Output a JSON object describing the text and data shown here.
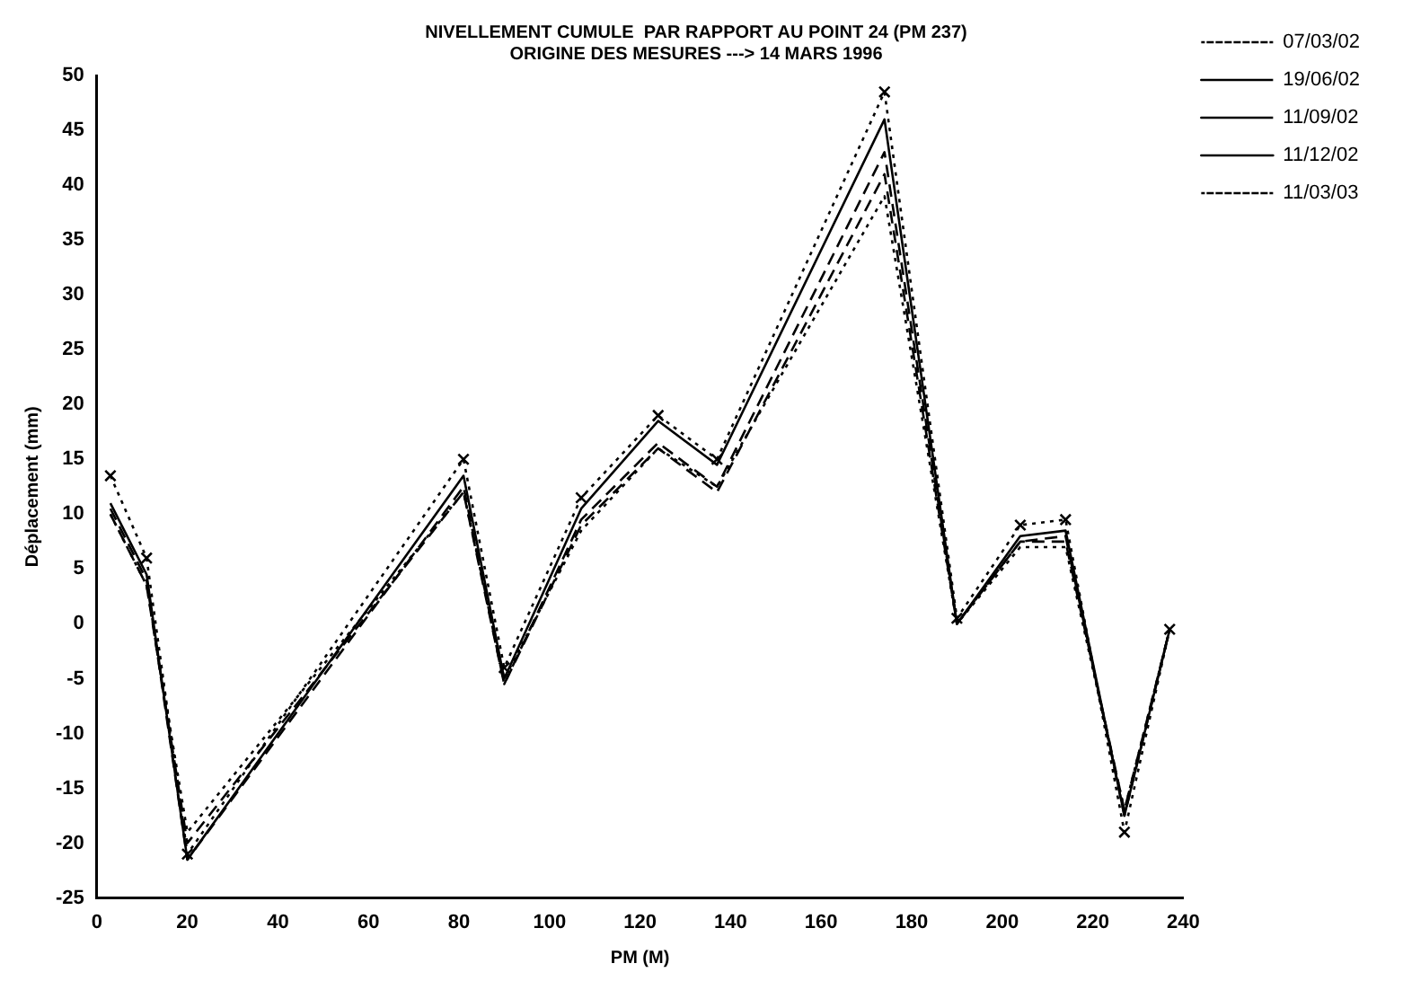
{
  "chart_data": {
    "type": "line",
    "title": "NIVELLEMENT CUMULE  PAR RAPPORT AU POINT 24 (PM 237)",
    "subtitle": "ORIGINE DES MESURES ---> 14 MARS 1996",
    "xlabel": "PM (M)",
    "ylabel": "Déplacement (mm)",
    "x": [
      3,
      11,
      20,
      81,
      90,
      107,
      124,
      137,
      174,
      190,
      204,
      214,
      227,
      237
    ],
    "series": [
      {
        "name": "07/03/02",
        "color": "#000000",
        "line_style": "dotted",
        "marker": "none",
        "values": [
          10,
          3.5,
          -19,
          12,
          -5,
          8.5,
          16,
          12.5,
          39,
          0,
          7,
          7,
          -17,
          -0.5
        ]
      },
      {
        "name": "19/06/02",
        "color": "#000000",
        "line_style": "dashed",
        "marker": "none",
        "values": [
          10,
          3.5,
          -20,
          12,
          -5.5,
          9,
          16,
          12,
          41,
          0,
          7.5,
          7.5,
          -17,
          -0.5
        ]
      },
      {
        "name": "11/09/02",
        "color": "#000000",
        "line_style": "dashed",
        "marker": "none",
        "values": [
          10.5,
          4,
          -21.5,
          12.5,
          -5.5,
          9.5,
          16.5,
          12.5,
          43,
          0,
          7.5,
          8,
          -17.5,
          -0.5
        ]
      },
      {
        "name": "11/12/02",
        "color": "#000000",
        "line_style": "solid",
        "marker": "none",
        "values": [
          11,
          4.5,
          -21.5,
          13.5,
          -5,
          10.5,
          18.5,
          14.5,
          46,
          0,
          8,
          8.5,
          -17.5,
          -0.5
        ]
      },
      {
        "name": "11/03/03",
        "color": "#000000",
        "line_style": "dotted",
        "marker": "cross",
        "values": [
          13.5,
          6,
          -21,
          15,
          -4,
          11.5,
          19,
          15,
          48.5,
          0.5,
          9,
          9.5,
          -19,
          -0.5
        ]
      }
    ],
    "xlim": [
      0,
      240
    ],
    "xticks": [
      0,
      20,
      40,
      60,
      80,
      100,
      120,
      140,
      160,
      180,
      200,
      220,
      240
    ],
    "ylim": [
      -25,
      50
    ],
    "yticks": [
      -25,
      -20,
      -15,
      -10,
      -5,
      0,
      5,
      10,
      15,
      20,
      25,
      30,
      35,
      40,
      45,
      50
    ],
    "grid": false,
    "legend": "top right"
  }
}
